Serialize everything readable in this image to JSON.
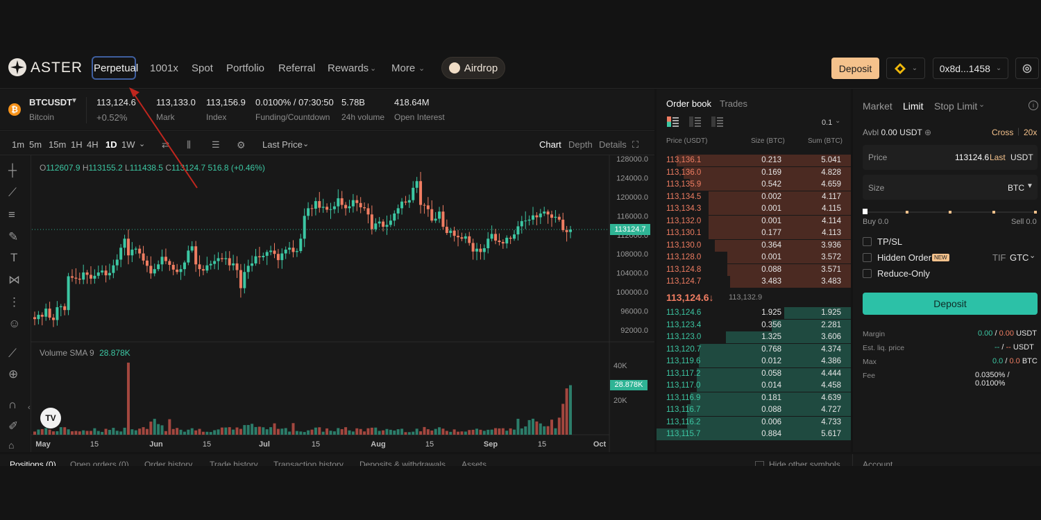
{
  "brand": {
    "name": "ASTER"
  },
  "nav": {
    "items": [
      "Perpetual",
      "1001x",
      "Spot",
      "Portfolio",
      "Referral",
      "Rewards",
      "More"
    ],
    "airdrop": "Airdrop",
    "deposit": "Deposit",
    "wallet": "0x8d...1458"
  },
  "ticker": {
    "symbol": "BTCUSDT",
    "name": "Bitcoin",
    "last": "113,124.6",
    "change": "+0.52%",
    "mark": "113,133.0",
    "mark_label": "Mark",
    "index": "113,156.9",
    "index_label": "Index",
    "funding": "0.0100% / 07:30:50",
    "funding_label": "Funding/Countdown",
    "volume": "5.78B",
    "volume_label": "24h volume",
    "oi": "418.64M",
    "oi_label": "Open Interest"
  },
  "chart_toolbar": {
    "intervals": [
      "1m",
      "5m",
      "15m",
      "1H",
      "4H",
      "1D",
      "1W"
    ],
    "price_type": "Last Price",
    "views": [
      "Chart",
      "Depth",
      "Details"
    ]
  },
  "ohlc": {
    "o": "112607.9",
    "h": "113155.2",
    "l": "111438.5",
    "c": "113124.7",
    "chg": "516.8 (+0.46%)"
  },
  "volume_label": "Volume SMA 9",
  "volume_value": "28.878K",
  "current_price_tag": "113124.7",
  "chart_data": {
    "type": "candlestick",
    "y_ticks": [
      "128000.0",
      "124000.0",
      "120000.0",
      "116000.0",
      "112000.0",
      "108000.0",
      "104000.0",
      "100000.0",
      "96000.0",
      "92000.0"
    ],
    "volume_ticks": [
      "40K",
      "20K"
    ],
    "x_ticks": [
      "May",
      "15",
      "Jun",
      "15",
      "Jul",
      "15",
      "Aug",
      "15",
      "Sep",
      "15",
      "Oct"
    ],
    "close_series": [
      94300,
      95200,
      94800,
      96500,
      94600,
      94100,
      96800,
      97000,
      96200,
      103300,
      103000,
      102800,
      102600,
      104100,
      103600,
      102800,
      103400,
      104100,
      104500,
      103500,
      104000,
      105600,
      106800,
      109300,
      111200,
      107700,
      108900,
      109100,
      108100,
      106600,
      105500,
      103900,
      104800,
      105800,
      107400,
      106500,
      105700,
      104700,
      104200,
      104800,
      106200,
      108700,
      109600,
      105800,
      104800,
      104500,
      105600,
      105900,
      106500,
      107100,
      106900,
      107100,
      105600,
      106000,
      104600,
      100800,
      104200,
      105500,
      106000,
      107500,
      107300,
      107600,
      108400,
      108700,
      108000,
      106700,
      108100,
      108900,
      109300,
      108400,
      108600,
      111200,
      116000,
      117600,
      117500,
      119100,
      117700,
      117900,
      117300,
      117400,
      118000,
      119700,
      118300,
      117600,
      118000,
      119300,
      118700,
      117800,
      117600,
      116300,
      113200,
      114400,
      114800,
      113700,
      114100,
      115000,
      116500,
      117600,
      119000,
      118800,
      119300,
      121900,
      123300,
      118300,
      118200,
      117400,
      115000,
      115400,
      116900,
      113700,
      112400,
      112900,
      111800,
      111500,
      111200,
      111700,
      110300,
      108500,
      109100,
      108400,
      109200,
      111200,
      112200,
      110800,
      110500,
      110200,
      111400,
      111200,
      112100,
      113800,
      114900,
      115000,
      115200,
      116100,
      115700,
      116500,
      116900,
      116300,
      115600,
      115800,
      115200,
      113000,
      112600,
      113124.7
    ],
    "volume_note": "volume bars in K BTC, spike of ~42K near mid-May and ~28.9K latest"
  },
  "orderbook": {
    "tabs": [
      "Order book",
      "Trades"
    ],
    "precision": "0.1",
    "headers": [
      "Price (USDT)",
      "Size (BTC)",
      "Sum (BTC)"
    ],
    "asks": [
      [
        "113,136.1",
        "0.213",
        "5.041"
      ],
      [
        "113,136.0",
        "0.169",
        "4.828"
      ],
      [
        "113,135.9",
        "0.542",
        "4.659"
      ],
      [
        "113,134.5",
        "0.002",
        "4.117"
      ],
      [
        "113,134.3",
        "0.001",
        "4.115"
      ],
      [
        "113,132.0",
        "0.001",
        "4.114"
      ],
      [
        "113,130.1",
        "0.177",
        "4.113"
      ],
      [
        "113,130.0",
        "0.364",
        "3.936"
      ],
      [
        "113,128.0",
        "0.001",
        "3.572"
      ],
      [
        "113,124.8",
        "0.088",
        "3.571"
      ],
      [
        "113,124.7",
        "3.483",
        "3.483"
      ]
    ],
    "mid_price": "113,124.6",
    "mid_mark": "113,132.9",
    "bids": [
      [
        "113,124.6",
        "1.925",
        "1.925"
      ],
      [
        "113,123.4",
        "0.356",
        "2.281"
      ],
      [
        "113,123.0",
        "1.325",
        "3.606"
      ],
      [
        "113,120.7",
        "0.768",
        "4.374"
      ],
      [
        "113,119.6",
        "0.012",
        "4.386"
      ],
      [
        "113,117.2",
        "0.058",
        "4.444"
      ],
      [
        "113,117.0",
        "0.014",
        "4.458"
      ],
      [
        "113,116.9",
        "0.181",
        "4.639"
      ],
      [
        "113,116.7",
        "0.088",
        "4.727"
      ],
      [
        "113,116.2",
        "0.006",
        "4.733"
      ],
      [
        "113,115.7",
        "0.884",
        "5.617"
      ]
    ]
  },
  "order_form": {
    "types": [
      "Market",
      "Limit",
      "Stop Limit"
    ],
    "avbl_label": "Avbl",
    "avbl": "0.00 USDT",
    "margin_mode": "Cross",
    "leverage": "20x",
    "price_label": "Price",
    "price_value": "113124.6",
    "price_last": "Last",
    "price_unit": "USDT",
    "size_label": "Size",
    "size_unit": "BTC",
    "buy": "Buy 0.0",
    "sell": "Sell 0.0",
    "tpsl": "TP/SL",
    "hidden_order": "Hidden Order",
    "new_badge": "NEW",
    "tif_label": "TIF",
    "tif_value": "GTC",
    "reduce_only": "Reduce-Only",
    "deposit": "Deposit",
    "margin_label": "Margin",
    "margin_value": "0.00 / 0.00 USDT",
    "liq_label": "Est. liq. price",
    "liq_value": "-- / -- USDT",
    "max_label": "Max",
    "max_value": "0.0 / 0.0 BTC",
    "fee_label": "Fee",
    "fee_value": "0.0350% / 0.0100%"
  },
  "bottom_tabs": [
    "Positions (0)",
    "Open orders (0)",
    "Order history",
    "Trade history",
    "Transaction history",
    "Deposits & withdrawals",
    "Assets"
  ],
  "hide_symbols": "Hide other symbols",
  "account_label": "Account",
  "colors": {
    "green": "#3cc7a3",
    "red": "#f07d62",
    "accent": "#f5c28c",
    "bg": "#141414"
  }
}
